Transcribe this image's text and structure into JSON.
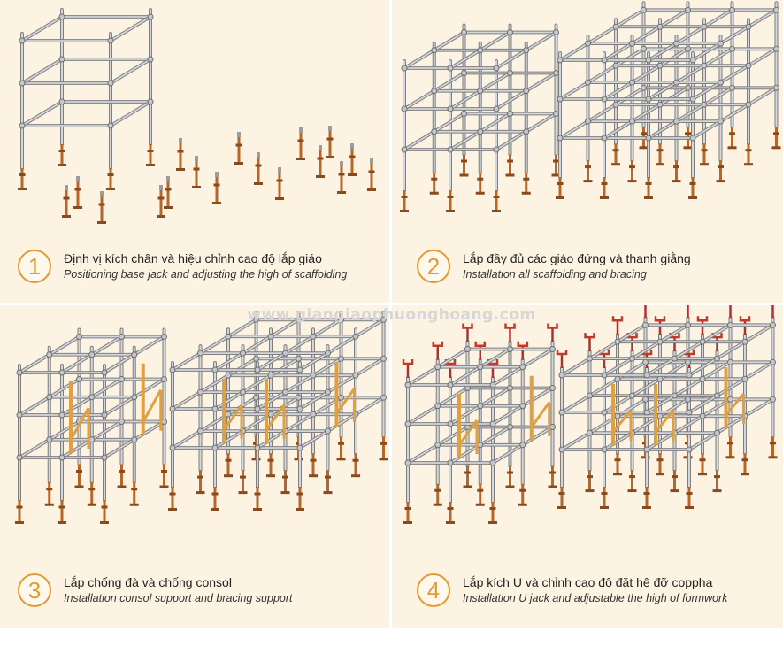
{
  "watermark": "www.giangiaophuonghoang.com",
  "colors": {
    "panel_bg": "#fcf3e3",
    "accent": "#e39a35",
    "jack": "#b8652a",
    "pipe": "#a8aaad",
    "ujack": "#c0392b",
    "brace": "#e0a040"
  },
  "steps": [
    {
      "number": "1",
      "vi": "Định vị kích chân và hiệu chỉnh cao độ lắp giáo",
      "en": "Positioning base jack and adjusting the high of scaffolding"
    },
    {
      "number": "2",
      "vi": "Lắp đầy đủ các giáo đứng và thanh giằng",
      "en": "Installation all scaffolding and bracing"
    },
    {
      "number": "3",
      "vi": "Lắp chống đà và chống consol",
      "en": "Installation consol support and bracing support"
    },
    {
      "number": "4",
      "vi": "Lắp kích U và chỉnh cao độ đặt hệ đỡ coppha",
      "en": "Installation U jack and adjustable the high of formwork"
    }
  ]
}
